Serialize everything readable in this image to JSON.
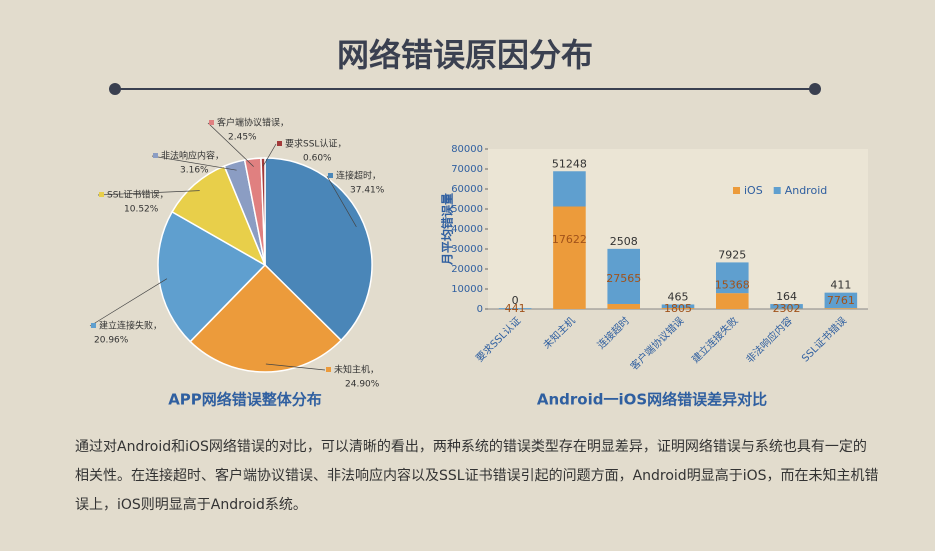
{
  "header": {
    "title": "网络错误原因分布"
  },
  "chart_data": [
    {
      "type": "pie",
      "title": "APP网络错误整体分布",
      "categories": [
        "连接超时，",
        "未知主机，",
        "建立连接失败，",
        "SSL证书错误，",
        "非法响应内容，",
        "客户端协议错误，",
        "要求SSL认证，"
      ],
      "values": [
        37.41,
        24.9,
        20.96,
        10.52,
        3.16,
        2.45,
        0.6
      ],
      "value_labels": [
        "37.41%",
        "24.90%",
        "20.96%",
        "10.52%",
        "3.16%",
        "2.45%",
        "0.60%"
      ],
      "colors": [
        "#4a86b8",
        "#ec9b3b",
        "#5f9fcf",
        "#e8cf4a",
        "#8b9dc3",
        "#e08080",
        "#a33a3a"
      ]
    },
    {
      "type": "bar",
      "stacked": true,
      "title": "Android一iOS网络错误差异对比",
      "y_label": "月平均错误量",
      "categories": [
        "要求SSL认证",
        "未知主机",
        "连接超时",
        "客户端协议错误",
        "建立连接失败",
        "非法响应内容",
        "SSL证书错误"
      ],
      "series": [
        {
          "name": "iOS",
          "color": "#ec9b3b",
          "values": [
            0,
            51248,
            2508,
            465,
            7925,
            164,
            411
          ]
        },
        {
          "name": "Android",
          "color": "#5f9fcf",
          "values": [
            441,
            17622,
            27565,
            1805,
            15368,
            2302,
            7761
          ]
        }
      ],
      "ylim": [
        0,
        80000
      ],
      "yticks": [
        0,
        10000,
        20000,
        30000,
        40000,
        50000,
        60000,
        70000,
        80000
      ],
      "legend": "upper right"
    }
  ],
  "paragraph": "通过对Android和iOS网络错误的对比，可以清晰的看出，两种系统的错误类型存在明显差异，证明网络错误与系统也具有一定的相关性。在连接超时、客户端协议错误、非法响应内容以及SSL证书错误引起的问题方面，Android明显高于iOS，而在未知主机错误上，iOS则明显高于Android系统。"
}
